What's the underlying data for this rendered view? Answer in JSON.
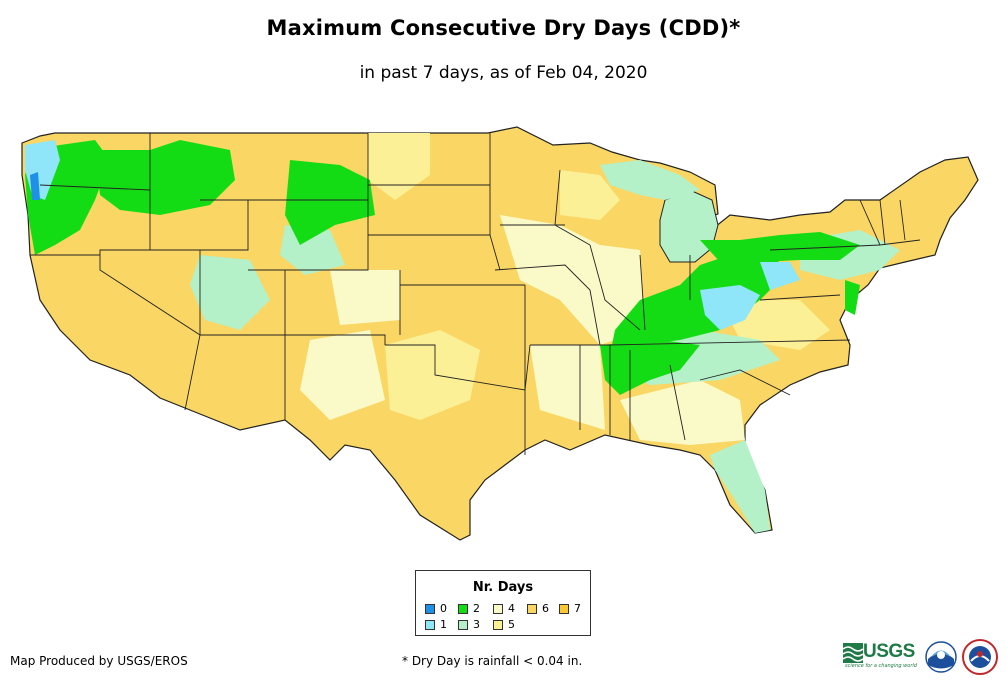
{
  "header": {
    "title": "Maximum Consecutive Dry Days (CDD)*",
    "subtitle": "in past 7 days, as of Feb 04, 2020"
  },
  "legend": {
    "title": "Nr. Days",
    "items": [
      {
        "label": "0",
        "color": "#1e90e6"
      },
      {
        "label": "1",
        "color": "#8ee6f8"
      },
      {
        "label": "2",
        "color": "#14dc14"
      },
      {
        "label": "3",
        "color": "#b4f0c8"
      },
      {
        "label": "4",
        "color": "#fafac8"
      },
      {
        "label": "5",
        "color": "#fcf096"
      },
      {
        "label": "6",
        "color": "#fad764"
      },
      {
        "label": "7",
        "color": "#fac832"
      }
    ]
  },
  "footer": {
    "credit": "Map Produced by USGS/EROS",
    "footnote": "* Dry Day is rainfall < 0.04 in.",
    "usgs_logo_text": "USGS",
    "usgs_tagline": "science for a changing world"
  },
  "icons": [
    "usgs-logo",
    "noaa-logo-icon",
    "nws-logo-icon"
  ]
}
